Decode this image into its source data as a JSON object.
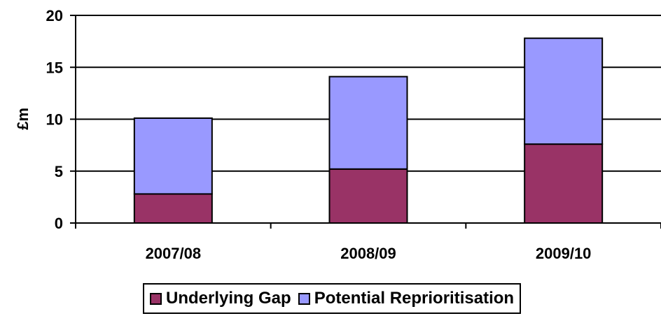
{
  "chart_data": {
    "type": "bar",
    "stacked": true,
    "categories": [
      "2007/08",
      "2008/09",
      "2009/10"
    ],
    "series": [
      {
        "name": "Underlying Gap",
        "values": [
          2.8,
          5.2,
          7.6
        ],
        "color": "#993366"
      },
      {
        "name": "Potential Reprioritisation",
        "values": [
          7.3,
          8.9,
          10.2
        ],
        "color": "#9999FF"
      }
    ],
    "ylabel": "£m",
    "xlabel": "",
    "ylim": [
      0,
      20
    ],
    "yticks": [
      0,
      5,
      10,
      15,
      20
    ],
    "grid": true,
    "legend": "bottom"
  }
}
